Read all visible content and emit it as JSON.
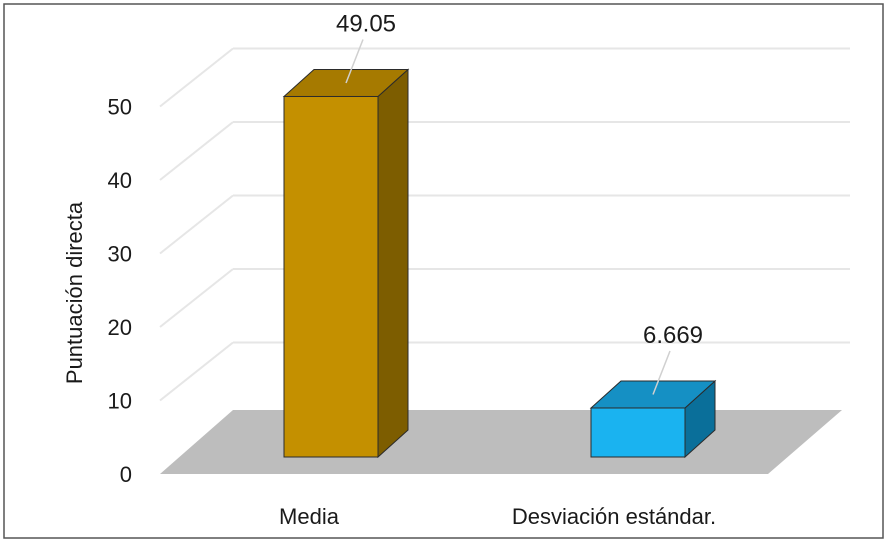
{
  "chart_data": {
    "type": "bar",
    "title": "",
    "xlabel": "",
    "ylabel": "Puntuación directa",
    "categories": [
      "Media",
      "Desviación estándar."
    ],
    "values": [
      49.05,
      6.669
    ],
    "data_labels": [
      "49.05",
      "6.669"
    ],
    "ylim": [
      0,
      50
    ],
    "yticks": [
      "0",
      "10",
      "20",
      "30",
      "40",
      "50"
    ],
    "grid": true,
    "legend": "none",
    "style": "3d-column",
    "colors": {
      "Media": {
        "front": "#c49000",
        "side": "#7d5d00",
        "top": "#a67a00"
      },
      "Desviación estándar.": {
        "front": "#1ab3f0",
        "side": "#0a6f9a",
        "top": "#1590c4"
      },
      "floor": "#bdbdbd",
      "grid": "#e6e6e6"
    }
  }
}
